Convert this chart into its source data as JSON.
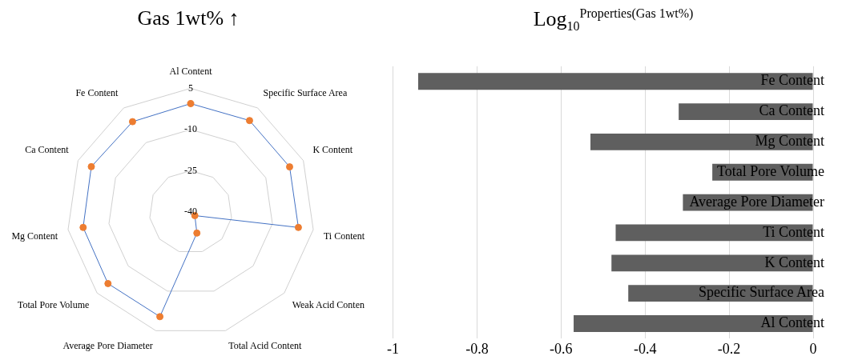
{
  "chart_data": [
    {
      "type": "radar",
      "title": "Gas 1wt% ↑",
      "categories": [
        "Al Content",
        "Specific Surface Area",
        "K Content",
        "Ti Content",
        "Weak Acid Conten",
        "Total Acid Content",
        "Average Pore Diameter",
        "Total Pore Volume",
        "Mg Content",
        "Ca Content",
        "Fe Content"
      ],
      "series": [
        {
          "color": "#4472c4",
          "colors": [
            "#ed7d31",
            "#ed7d31",
            "#ed7d31",
            "#ed7d31",
            "#ed7d31",
            "#ed7d31",
            "#ed7d31",
            "#ed7d31",
            "#ed7d31",
            "#ed7d31",
            "#ed7d31"
          ],
          "values": [
            -0.57,
            -0.44,
            -0.48,
            -0.47,
            -38,
            -32,
            -0.31,
            -0.24,
            -0.53,
            -0.32,
            -0.94
          ]
        }
      ],
      "ylim": [
        -40,
        5
      ],
      "yticks": [
        -40,
        -25,
        -10,
        5
      ],
      "marker": "circle",
      "grid": true,
      "legend": false
    },
    {
      "type": "bar",
      "title": "Log$_{10}$$^{Properties(Gas 1wt%)}$",
      "orientation": "horizontal",
      "categories": [
        "Fe Content",
        "Ca Content",
        "Mg Content",
        "Total Pore Volume",
        "Average Pore Diameter",
        "Ti Content",
        "K Content",
        "Specific Surface Area",
        "Al Content"
      ],
      "values": [
        -0.94,
        -0.32,
        -0.53,
        -0.24,
        -0.31,
        -0.47,
        -0.48,
        -0.44,
        -0.57
      ],
      "color": "#5f5f5f",
      "xlim": [
        -1,
        0
      ],
      "xticks": [
        -1,
        -0.8,
        -0.6,
        -0.4,
        -0.2,
        0
      ],
      "grid": "x",
      "legend": false
    }
  ]
}
